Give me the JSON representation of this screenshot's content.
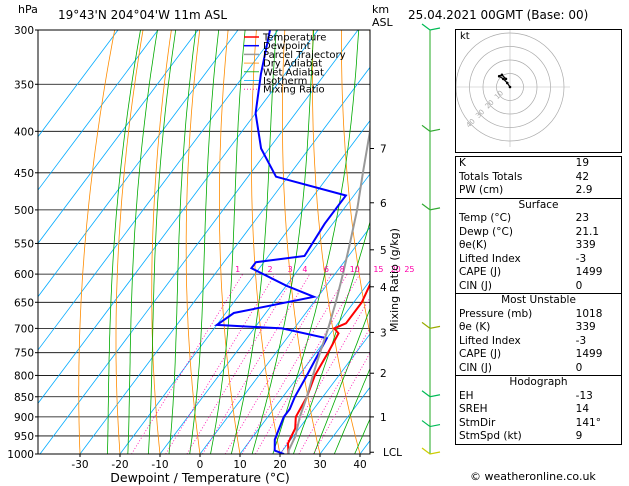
{
  "header": {
    "pressure_unit": "hPa",
    "location": "19°43'N  204°04'W  11m  ASL",
    "height_unit_line1": "km",
    "height_unit_line2": "ASL",
    "datetime": "25.04.2021  00GMT  (Base: 00)"
  },
  "legend": [
    {
      "label": "Temperature",
      "color": "#ff0000"
    },
    {
      "label": "Dewpoint",
      "color": "#0000ff"
    },
    {
      "label": "Parcel Trajectory",
      "color": "#999999"
    },
    {
      "label": "Dry Adiabat",
      "color": "#ff8c00"
    },
    {
      "label": "Wet Adiabat",
      "color": "#00aa00"
    },
    {
      "label": "Isotherm",
      "color": "#00aaff"
    },
    {
      "label": "Mixing Ratio",
      "color": "#ff00aa"
    }
  ],
  "chart_data": {
    "type": "line",
    "xlabel": "Dewpoint / Temperature (°C)",
    "ylabel": "Mixing Ratio (g/kg)",
    "pressure_levels": [
      "300",
      "350",
      "400",
      "450",
      "500",
      "550",
      "600",
      "650",
      "700",
      "750",
      "800",
      "850",
      "900",
      "950",
      "1000"
    ],
    "temperature_ticks": [
      "-30",
      "-20",
      "-10",
      "0",
      "10",
      "20",
      "30",
      "40"
    ],
    "km_labels": [
      {
        "km": "7",
        "p": 420
      },
      {
        "km": "6",
        "p": 490
      },
      {
        "km": "5",
        "p": 560
      },
      {
        "km": "4",
        "p": 622
      },
      {
        "km": "3",
        "p": 708
      },
      {
        "km": "2",
        "p": 795
      },
      {
        "km": "1",
        "p": 900
      },
      {
        "km": "LCL",
        "p": 995
      }
    ],
    "mixing_ratio_labels": [
      "1",
      "2",
      "3",
      "4",
      "6",
      "8",
      "10",
      "15",
      "20",
      "25"
    ],
    "xlim": [
      -35,
      40
    ],
    "ylim": [
      300,
      1000
    ],
    "series": [
      {
        "name": "Temperature",
        "color": "#ff0000",
        "points": [
          [
            23,
            1013
          ],
          [
            20,
            970
          ],
          [
            19,
            930
          ],
          [
            17,
            900
          ],
          [
            16,
            850
          ],
          [
            14,
            800
          ],
          [
            13,
            750
          ],
          [
            12,
            710
          ],
          [
            10,
            700
          ],
          [
            12,
            690
          ],
          [
            12,
            650
          ],
          [
            10,
            600
          ],
          [
            6,
            550
          ],
          [
            0,
            500
          ],
          [
            -4,
            470
          ],
          [
            -5,
            450
          ],
          [
            -10,
            400
          ],
          [
            -17,
            350
          ],
          [
            -24,
            300
          ]
        ]
      },
      {
        "name": "Dewpoint",
        "color": "#0000ff",
        "points": [
          [
            21,
            1000
          ],
          [
            18,
            990
          ],
          [
            16,
            960
          ],
          [
            15,
            930
          ],
          [
            14,
            900
          ],
          [
            14,
            880
          ],
          [
            13,
            850
          ],
          [
            12,
            800
          ],
          [
            11,
            760
          ],
          [
            10,
            720
          ],
          [
            -3,
            700
          ],
          [
            -20,
            693
          ],
          [
            -18,
            670
          ],
          [
            -1,
            640
          ],
          [
            -10,
            620
          ],
          [
            -22,
            590
          ],
          [
            -22,
            580
          ],
          [
            -11,
            570
          ],
          [
            -12,
            520
          ],
          [
            -12,
            480
          ],
          [
            -33,
            455
          ],
          [
            -42,
            420
          ],
          [
            -50,
            380
          ],
          [
            -56,
            340
          ],
          [
            -62,
            300
          ]
        ]
      },
      {
        "name": "Parcel Trajectory",
        "color": "#999999",
        "points": [
          [
            23,
            1013
          ],
          [
            21.5,
            990
          ],
          [
            20.5,
            950
          ],
          [
            18,
            900
          ],
          [
            16,
            850
          ],
          [
            13.5,
            800
          ],
          [
            11,
            750
          ],
          [
            8.5,
            700
          ],
          [
            5.5,
            650
          ],
          [
            2,
            600
          ],
          [
            -2,
            550
          ],
          [
            -6.5,
            500
          ],
          [
            -12,
            450
          ],
          [
            -18,
            400
          ],
          [
            -26,
            350
          ],
          [
            -35,
            300
          ]
        ]
      }
    ],
    "hodograph": {
      "label": "kt",
      "ring_labels": [
        "10",
        "20",
        "30",
        "40"
      ],
      "points_kt": [
        [
          0,
          0
        ],
        [
          -2,
          3
        ],
        [
          -5,
          6
        ],
        [
          -8,
          8
        ],
        [
          -6,
          9
        ],
        [
          -3,
          6
        ]
      ]
    },
    "wind_barbs": [
      {
        "p": 300,
        "color": "#00bb55"
      },
      {
        "p": 400,
        "color": "#33aa33"
      },
      {
        "p": 500,
        "color": "#33aa33"
      },
      {
        "p": 700,
        "color": "#99aa00"
      },
      {
        "p": 850,
        "color": "#00bb55"
      },
      {
        "p": 925,
        "color": "#00bb55"
      },
      {
        "p": 1000,
        "color": "#cccc00"
      }
    ]
  },
  "indices": {
    "top": [
      {
        "label": "K",
        "value": "19"
      },
      {
        "label": "Totals Totals",
        "value": "42"
      },
      {
        "label": "PW (cm)",
        "value": "2.9"
      }
    ],
    "surface": {
      "title": "Surface",
      "rows": [
        {
          "label": "Temp (°C)",
          "value": "23"
        },
        {
          "label": "Dewp (°C)",
          "value": "21.1"
        },
        {
          "label": "θe(K)",
          "value": "339"
        },
        {
          "label": "Lifted Index",
          "value": "-3"
        },
        {
          "label": "CAPE (J)",
          "value": "1499"
        },
        {
          "label": "CIN (J)",
          "value": "0"
        }
      ]
    },
    "unstable": {
      "title": "Most Unstable",
      "rows": [
        {
          "label": "Pressure (mb)",
          "value": "1018"
        },
        {
          "label": "θe (K)",
          "value": "339"
        },
        {
          "label": "Lifted Index",
          "value": "-3"
        },
        {
          "label": "CAPE (J)",
          "value": "1499"
        },
        {
          "label": "CIN (J)",
          "value": "0"
        }
      ]
    },
    "hodograph": {
      "title": "Hodograph",
      "rows": [
        {
          "label": "EH",
          "value": "-13"
        },
        {
          "label": "SREH",
          "value": "14"
        },
        {
          "label": "StmDir",
          "value": "141°"
        },
        {
          "label": "StmSpd (kt)",
          "value": "9"
        }
      ]
    }
  },
  "footer": {
    "copyright": "© weatheronline.co.uk"
  }
}
